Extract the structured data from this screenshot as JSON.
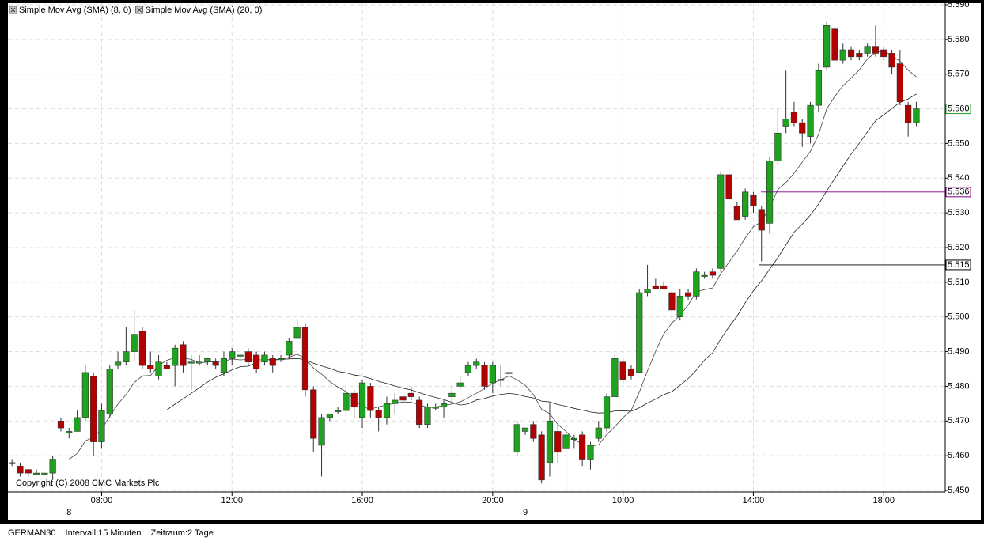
{
  "chart_data": {
    "type": "candlestick",
    "legend": [
      "Simple Mov Avg (SMA) (8, 0)",
      "Simple Mov Avg (SMA) (20, 0)"
    ],
    "sma_periods": [
      8,
      20
    ],
    "sma_colors": [
      "#444444",
      "#222222"
    ],
    "copyright": "Copyright (C) 2008 CMC Markets Plc",
    "instrument": "GERMAN30",
    "interval": "Intervall:15 Minuten",
    "period": "Zeitraum:2 Tage",
    "up_color": "#1fa31f",
    "down_color": "#b30000",
    "ylim": [
      5450,
      5590
    ],
    "yticks": [
      {
        "value": 5450,
        "label": "5.450"
      },
      {
        "value": 5460,
        "label": "5.460"
      },
      {
        "value": 5470,
        "label": "5.470"
      },
      {
        "value": 5480,
        "label": "5.480"
      },
      {
        "value": 5490,
        "label": "5.490"
      },
      {
        "value": 5500,
        "label": "5.500"
      },
      {
        "value": 5510,
        "label": "5.510"
      },
      {
        "value": 5520,
        "label": "5.520"
      },
      {
        "value": 5530,
        "label": "5.530"
      },
      {
        "value": 5540,
        "label": "5.540"
      },
      {
        "value": 5550,
        "label": "5.550"
      },
      {
        "value": 5560,
        "label": "5.560"
      },
      {
        "value": 5570,
        "label": "5.570"
      },
      {
        "value": 5580,
        "label": "5.580"
      },
      {
        "value": 5590,
        "label": "5.590"
      }
    ],
    "grid": true,
    "price_lines": [
      {
        "value": 5536,
        "label": "5.536",
        "color": "#800080"
      },
      {
        "value": 5515,
        "label": "5.515",
        "color": "#000000"
      }
    ],
    "last_price": {
      "value": 5560,
      "label": "5.560"
    },
    "categories": [
      null,
      null,
      null,
      null,
      null,
      null,
      null,
      null,
      null,
      null,
      null,
      "08:00",
      null,
      null,
      null,
      null,
      null,
      null,
      null,
      null,
      null,
      null,
      null,
      null,
      null,
      null,
      null,
      "12:00",
      null,
      null,
      null,
      null,
      null,
      null,
      null,
      null,
      null,
      null,
      null,
      null,
      null,
      null,
      null,
      "16:00",
      null,
      null,
      null,
      null,
      null,
      null,
      null,
      null,
      null,
      null,
      null,
      null,
      null,
      null,
      null,
      "20:00",
      null,
      null,
      null,
      null,
      null,
      null,
      null,
      null,
      null,
      null,
      null,
      null,
      null,
      null,
      null,
      "10:00",
      null,
      null,
      null,
      null,
      null,
      null,
      null,
      null,
      null,
      null,
      null,
      null,
      null,
      null,
      null,
      "14:00",
      null,
      null,
      null,
      null,
      null,
      null,
      null,
      null,
      null,
      null,
      null,
      null,
      null,
      null,
      null,
      "18:00",
      null,
      null,
      null,
      null
    ],
    "days": [
      null,
      null,
      null,
      null,
      null,
      null,
      null,
      "8",
      null,
      null,
      null,
      null,
      null,
      null,
      null,
      null,
      null,
      null,
      null,
      null,
      null,
      null,
      null,
      null,
      null,
      null,
      null,
      null,
      null,
      null,
      null,
      null,
      null,
      null,
      null,
      null,
      null,
      null,
      null,
      null,
      null,
      null,
      null,
      null,
      null,
      null,
      null,
      null,
      null,
      null,
      null,
      null,
      null,
      null,
      null,
      null,
      null,
      null,
      null,
      null,
      null,
      null,
      null,
      "9",
      null,
      null,
      null,
      null,
      null,
      null,
      null,
      null,
      null,
      null,
      null,
      null,
      null,
      null,
      null,
      null,
      null,
      null,
      null,
      null,
      null,
      null,
      null,
      null,
      null,
      null,
      null,
      null,
      null,
      null,
      null,
      null,
      null,
      null,
      null,
      null,
      null,
      null,
      null,
      null,
      null,
      null,
      null,
      null,
      null,
      null,
      null,
      null,
      null,
      null,
      null,
      null
    ],
    "open": [
      5458,
      5457,
      5456,
      5455,
      5455,
      5455,
      5470,
      5467,
      5467,
      5471,
      5483,
      5464,
      5472,
      5486,
      5487,
      5490,
      5496,
      5486,
      5483,
      5486,
      5486,
      5492,
      5487,
      5487,
      5487,
      5487,
      5484,
      5488,
      5489,
      5490,
      5489,
      5487,
      5488,
      5488,
      5489,
      5494,
      5497,
      5479,
      5463,
      5471,
      5473,
      5473,
      5478,
      5471,
      5480,
      5473,
      5471,
      5475,
      5477,
      5478,
      5476,
      5469,
      5474,
      5474,
      5477,
      5480,
      5484,
      5486,
      5486,
      5481,
      5482,
      5484,
      5461,
      5467,
      5469,
      5466,
      5458,
      5467,
      5462,
      5465,
      5466,
      5459,
      5465,
      5468,
      5477,
      5487,
      5485,
      5484,
      5507,
      5509,
      5509,
      5507,
      5500,
      5507,
      5506,
      5512,
      5513,
      5514,
      5541,
      5532,
      5529,
      5535,
      5531,
      5527,
      5545,
      5555,
      5559,
      5556,
      5552,
      5561,
      5572,
      5583,
      5574,
      5577,
      5576,
      5576,
      5578,
      5577,
      5576,
      5573,
      5561,
      5556
    ],
    "high": [
      5459,
      5458,
      5456,
      5456,
      5455,
      5460,
      5471,
      5468,
      5473,
      5486,
      5484,
      5475,
      5486,
      5490,
      5497,
      5502,
      5497,
      5490,
      5489,
      5487,
      5492,
      5493,
      5489,
      5489,
      5488,
      5488,
      5490,
      5491,
      5491,
      5491,
      5490,
      5490,
      5489,
      5489,
      5494,
      5499,
      5498,
      5480,
      5472,
      5472,
      5474,
      5480,
      5479,
      5482,
      5481,
      5474,
      5477,
      5478,
      5478,
      5480,
      5477,
      5475,
      5475,
      5476,
      5480,
      5483,
      5487,
      5488,
      5487,
      5487,
      5486,
      5486,
      5470,
      5468,
      5470,
      5467,
      5475,
      5469,
      5468,
      5466,
      5467,
      5464,
      5470,
      5478,
      5489,
      5488,
      5486,
      5508,
      5515,
      5511,
      5510,
      5508,
      5508,
      5508,
      5514,
      5513,
      5514,
      5542,
      5544,
      5533,
      5537,
      5536,
      5532,
      5546,
      5560,
      5571,
      5562,
      5557,
      5562,
      5573,
      5585,
      5584,
      5579,
      5578,
      5577,
      5579,
      5584,
      5578,
      5577,
      5577,
      5562,
      5562
    ],
    "low": [
      5457,
      5454,
      5454,
      5455,
      5455,
      5453,
      5467,
      5465,
      5467,
      5470,
      5460,
      5462,
      5471,
      5485,
      5486,
      5487,
      5485,
      5484,
      5482,
      5485,
      5480,
      5484,
      5479,
      5486,
      5486,
      5485,
      5483,
      5486,
      5486,
      5486,
      5484,
      5486,
      5484,
      5487,
      5488,
      5494,
      5477,
      5461,
      5454,
      5470,
      5472,
      5470,
      5471,
      5468,
      5471,
      5467,
      5469,
      5472,
      5475,
      5476,
      5468,
      5468,
      5473,
      5471,
      5475,
      5479,
      5483,
      5485,
      5479,
      5478,
      5480,
      5478,
      5460,
      5466,
      5464,
      5452,
      5454,
      5458,
      5450,
      5462,
      5457,
      5456,
      5464,
      5467,
      5477,
      5481,
      5482,
      5484,
      5506,
      5508,
      5508,
      5499,
      5499,
      5505,
      5505,
      5511,
      5511,
      5513,
      5533,
      5528,
      5528,
      5530,
      5516,
      5524,
      5544,
      5553,
      5555,
      5549,
      5550,
      5559,
      5571,
      5572,
      5573,
      5574,
      5574,
      5575,
      5575,
      5574,
      5570,
      5561,
      5552,
      5555
    ],
    "close": [
      5458,
      5455,
      5455,
      5455,
      5455,
      5459,
      5468,
      5467,
      5471,
      5484,
      5464,
      5473,
      5485,
      5487,
      5490,
      5495,
      5486,
      5485,
      5487,
      5485,
      5491,
      5486,
      5487,
      5487,
      5488,
      5486,
      5488,
      5490,
      5489,
      5487,
      5485,
      5489,
      5486,
      5488,
      5493,
      5497,
      5479,
      5465,
      5471,
      5472,
      5473,
      5478,
      5474,
      5481,
      5473,
      5471,
      5475,
      5476,
      5476,
      5477,
      5469,
      5474,
      5474,
      5475,
      5478,
      5481,
      5486,
      5487,
      5480,
      5486,
      5482,
      5484,
      5469,
      5468,
      5465,
      5453,
      5470,
      5461,
      5466,
      5465,
      5459,
      5463,
      5468,
      5477,
      5488,
      5482,
      5483,
      5507,
      5508,
      5508,
      5508,
      5502,
      5506,
      5506,
      5513,
      5512,
      5512,
      5541,
      5534,
      5528,
      5536,
      5532,
      5525,
      5545,
      5553,
      5557,
      5556,
      5553,
      5561,
      5571,
      5584,
      5574,
      5577,
      5575,
      5575,
      5578,
      5576,
      5575,
      5572,
      5562,
      5556,
      5560
    ]
  }
}
